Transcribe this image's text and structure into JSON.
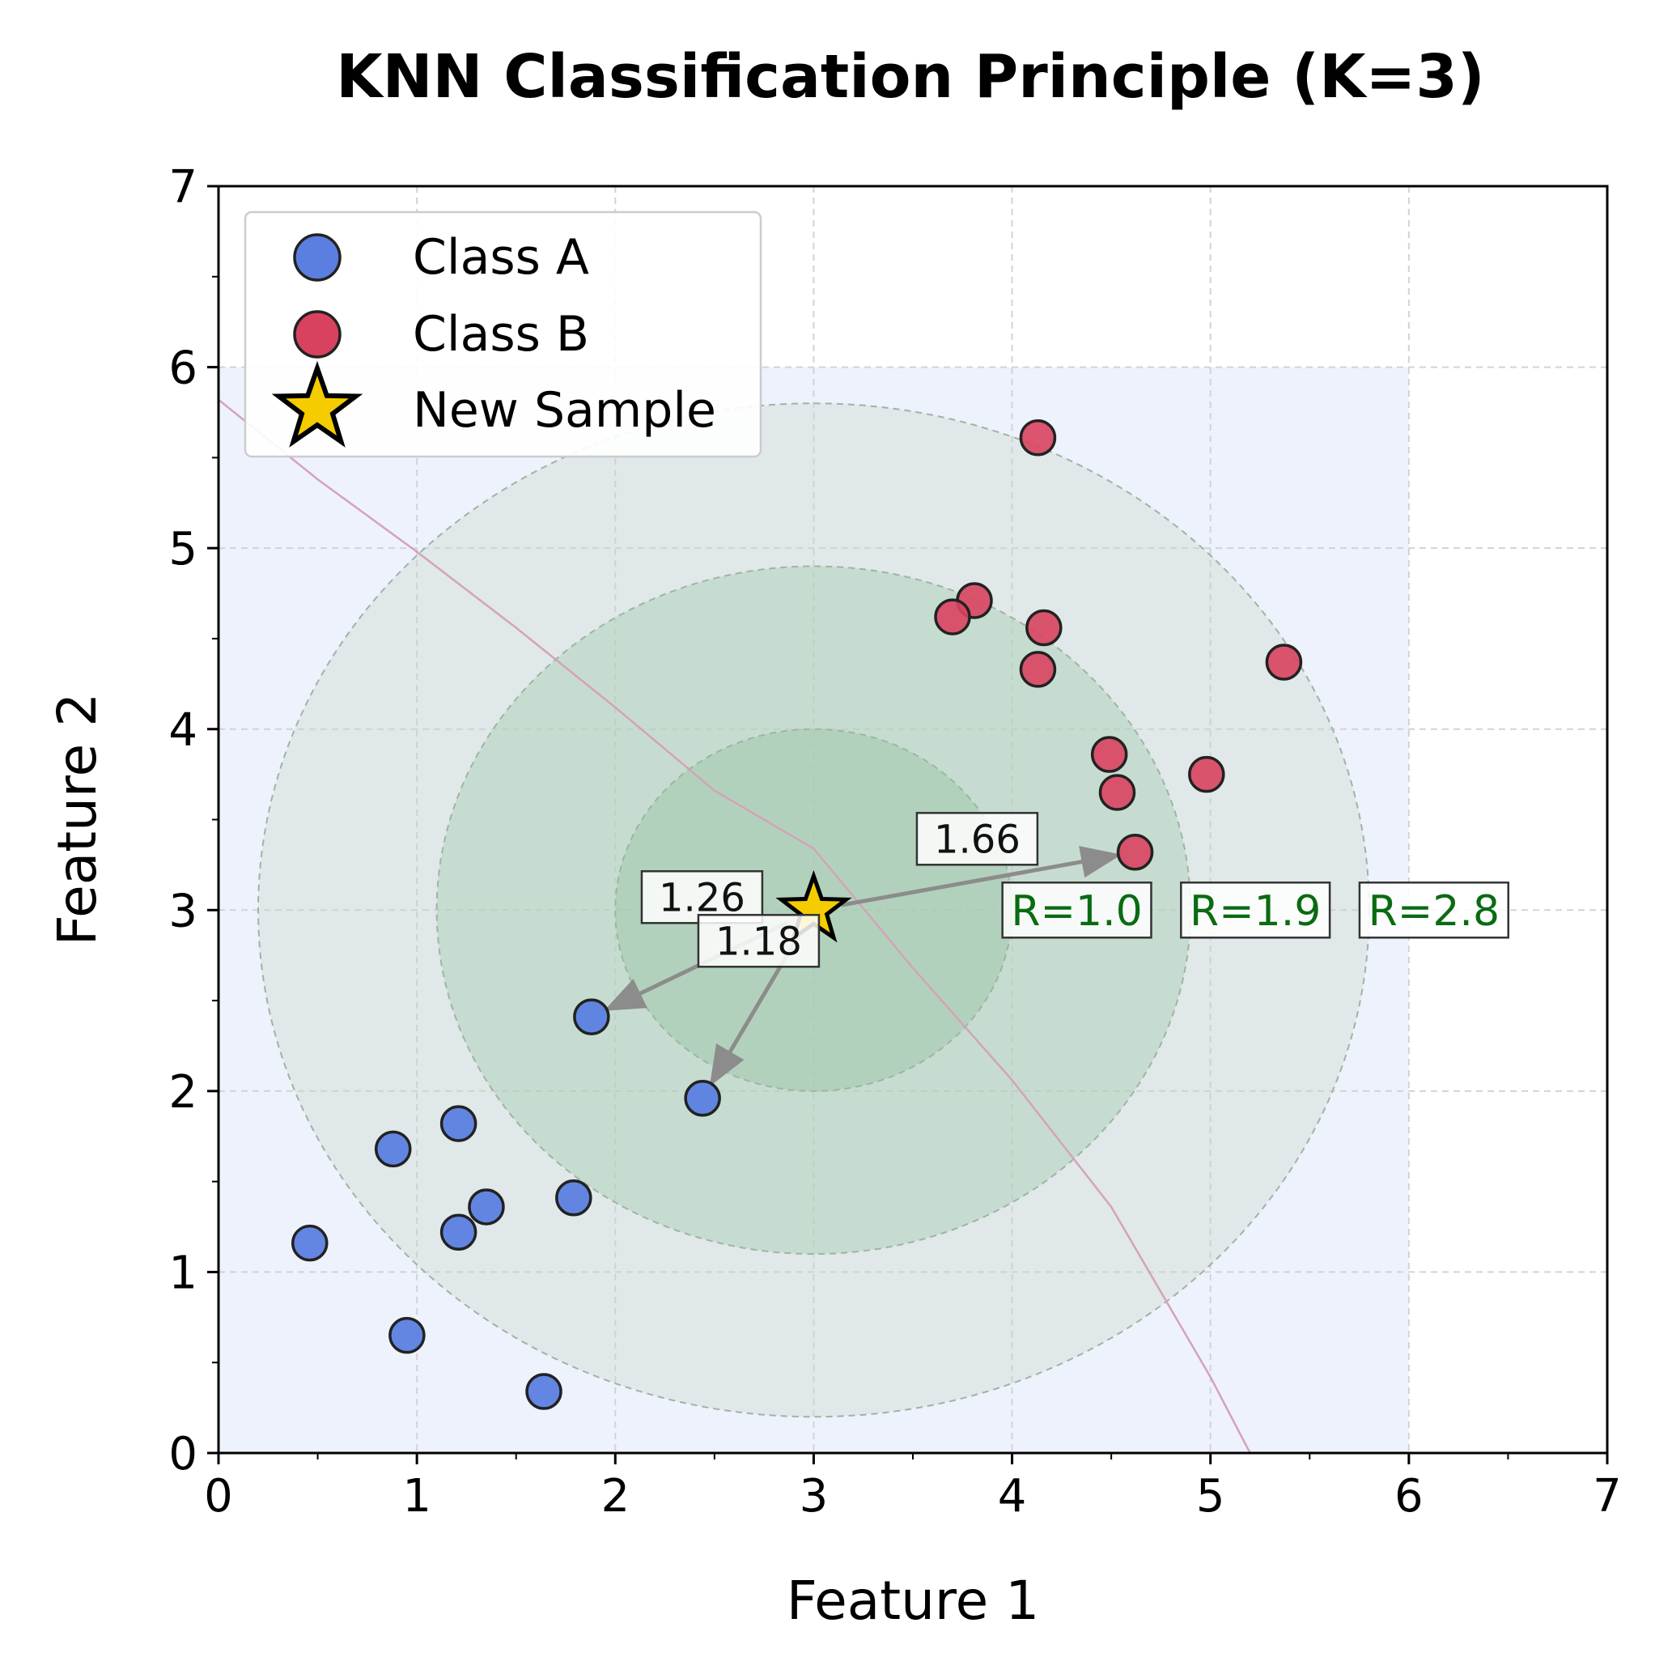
{
  "chart_data": {
    "type": "scatter",
    "title": "KNN Classification Principle (K=3)",
    "xlabel": "Feature 1",
    "ylabel": "Feature 2",
    "xlim": [
      0,
      7
    ],
    "ylim": [
      0,
      7
    ],
    "xticks": [
      "0",
      "1",
      "2",
      "3",
      "4",
      "5",
      "6",
      "7"
    ],
    "yticks": [
      "0",
      "1",
      "2",
      "3",
      "4",
      "5",
      "6",
      "7"
    ],
    "grid": true,
    "legend_position": "top-left",
    "shaded_region": {
      "x": [
        0,
        6
      ],
      "y": [
        0,
        6
      ]
    },
    "series": [
      {
        "name": "Class A",
        "color": "#5b7fe0",
        "points": [
          [
            0.46,
            1.16
          ],
          [
            0.88,
            1.68
          ],
          [
            0.95,
            0.65
          ],
          [
            1.21,
            1.82
          ],
          [
            1.21,
            1.22
          ],
          [
            1.35,
            1.36
          ],
          [
            1.64,
            0.34
          ],
          [
            1.79,
            1.41
          ],
          [
            1.88,
            2.41
          ],
          [
            2.44,
            1.96
          ]
        ]
      },
      {
        "name": "Class B",
        "color": "#d9425f",
        "points": [
          [
            4.13,
            5.61
          ],
          [
            3.81,
            4.71
          ],
          [
            3.7,
            4.62
          ],
          [
            4.16,
            4.56
          ],
          [
            4.13,
            4.33
          ],
          [
            5.37,
            4.37
          ],
          [
            4.49,
            3.86
          ],
          [
            4.53,
            3.65
          ],
          [
            4.98,
            3.75
          ],
          [
            4.62,
            3.32
          ]
        ]
      },
      {
        "name": "New Sample",
        "color": "#f5cc00",
        "marker": "star",
        "points": [
          [
            3.0,
            3.0
          ]
        ]
      }
    ],
    "radius_circles": [
      {
        "radius": 2.8,
        "label": "R=2.8",
        "fill": "#c7d6c7",
        "opacity": 0.35
      },
      {
        "radius": 1.9,
        "label": "R=1.9",
        "fill": "#a9ceb2",
        "opacity": 0.45
      },
      {
        "radius": 1.0,
        "label": "R=1.0",
        "fill": "#98c4a3",
        "opacity": 0.45
      }
    ],
    "neighbors": [
      {
        "from": [
          3.0,
          3.0
        ],
        "to": [
          4.62,
          3.32
        ],
        "distance_label": "1.66"
      },
      {
        "from": [
          3.0,
          3.0
        ],
        "to": [
          1.88,
          2.41
        ],
        "distance_label": "1.26"
      },
      {
        "from": [
          3.0,
          3.0
        ],
        "to": [
          2.44,
          1.96
        ],
        "distance_label": "1.18"
      }
    ],
    "decision_boundary": [
      [
        0.0,
        5.82
      ],
      [
        0.5,
        5.38
      ],
      [
        1.0,
        4.98
      ],
      [
        1.5,
        4.56
      ],
      [
        2.0,
        4.12
      ],
      [
        2.5,
        3.66
      ],
      [
        3.0,
        3.34
      ],
      [
        3.5,
        2.68
      ],
      [
        4.0,
        2.06
      ],
      [
        4.5,
        1.36
      ],
      [
        5.0,
        0.42
      ],
      [
        5.2,
        0.0
      ]
    ]
  }
}
